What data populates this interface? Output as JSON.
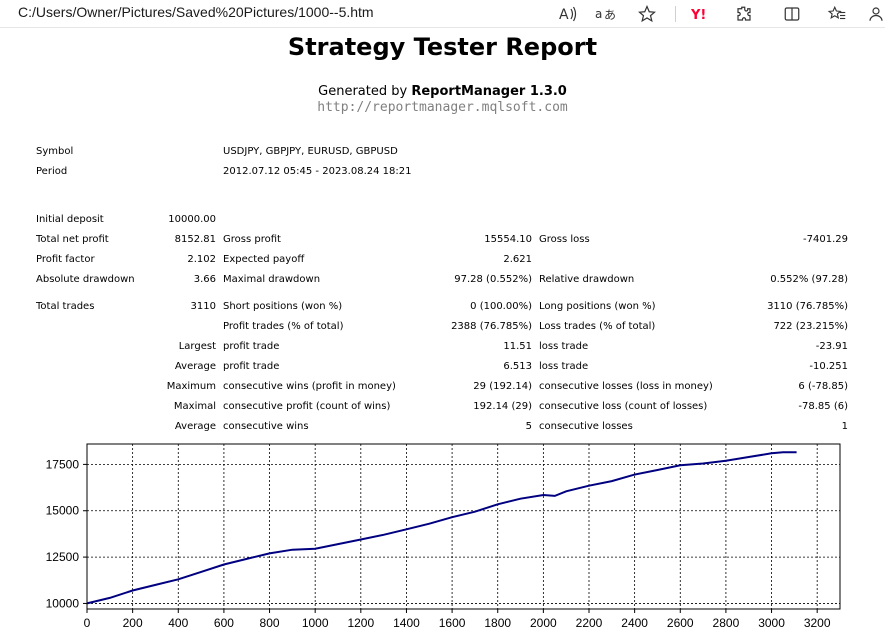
{
  "browser": {
    "url": "C:/Users/Owner/Pictures/Saved%20Pictures/1000--5.htm",
    "icons": [
      "read-aloud-icon",
      "translate-icon",
      "favorite-star-icon",
      "yahoo-icon",
      "extensions-icon",
      "split-screen-icon",
      "favorites-icon",
      "profile-icon"
    ]
  },
  "report": {
    "title": "Strategy Tester Report",
    "generated_prefix": "Generated by",
    "generator": "ReportManager 1.3.0",
    "generator_url": "http://reportmanager.mqlsoft.com",
    "symbol_label": "Symbol",
    "symbol_value": "USDJPY, GBPJPY, EURUSD, GBPUSD",
    "period_label": "Period",
    "period_value": "2012.07.12 05:45 - 2023.08.24 18:21",
    "initial_deposit_label": "Initial deposit",
    "initial_deposit_value": "10000.00",
    "total_net_profit_label": "Total net profit",
    "total_net_profit_value": "8152.81",
    "gross_profit_label": "Gross profit",
    "gross_profit_value": "15554.10",
    "gross_loss_label": "Gross loss",
    "gross_loss_value": "-7401.29",
    "profit_factor_label": "Profit factor",
    "profit_factor_value": "2.102",
    "expected_payoff_label": "Expected payoff",
    "expected_payoff_value": "2.621",
    "absolute_drawdown_label": "Absolute drawdown",
    "absolute_drawdown_value": "3.66",
    "maximal_drawdown_label": "Maximal drawdown",
    "maximal_drawdown_value": "97.28 (0.552%)",
    "relative_drawdown_label": "Relative drawdown",
    "relative_drawdown_value": "0.552% (97.28)",
    "total_trades_label": "Total trades",
    "total_trades_value": "3110",
    "short_positions_label": "Short positions (won %)",
    "short_positions_value": "0 (100.00%)",
    "long_positions_label": "Long positions (won %)",
    "long_positions_value": "3110 (76.785%)",
    "profit_trades_label": "Profit trades (% of total)",
    "profit_trades_value": "2388 (76.785%)",
    "loss_trades_label": "Loss trades (% of total)",
    "loss_trades_value": "722 (23.215%)",
    "largest_label": "Largest",
    "largest_profit_label": "profit trade",
    "largest_profit_value": "11.51",
    "largest_loss_label": "loss trade",
    "largest_loss_value": "-23.91",
    "average_label": "Average",
    "average_profit_label": "profit trade",
    "average_profit_value": "6.513",
    "average_loss_label": "loss trade",
    "average_loss_value": "-10.251",
    "maximum_label": "Maximum",
    "max_cons_wins_label": "consecutive wins (profit in money)",
    "max_cons_wins_value": "29 (192.14)",
    "max_cons_losses_label": "consecutive losses (loss in money)",
    "max_cons_losses_value": "6 (-78.85)",
    "maximal_label": "Maximal",
    "maximal_cons_profit_label": "consecutive profit (count of wins)",
    "maximal_cons_profit_value": "192.14 (29)",
    "maximal_cons_loss_label": "consecutive loss (count of losses)",
    "maximal_cons_loss_value": "-78.85 (6)",
    "average2_label": "Average",
    "avg_cons_wins_label": "consecutive wins",
    "avg_cons_wins_value": "5",
    "avg_cons_losses_label": "consecutive losses",
    "avg_cons_losses_value": "1"
  },
  "chart_data": {
    "type": "line",
    "xlim": [
      0,
      3300
    ],
    "ylim": [
      9700,
      18600
    ],
    "x_ticks": [
      "0",
      "200",
      "400",
      "600",
      "800",
      "1000",
      "1200",
      "1400",
      "1600",
      "1800",
      "2000",
      "2200",
      "2400",
      "2600",
      "2800",
      "3000",
      "3200"
    ],
    "y_ticks": [
      "10000",
      "12500",
      "15000",
      "17500"
    ],
    "grid": true,
    "line_color": "#000080",
    "series": [
      {
        "x": [
          0,
          100,
          200,
          300,
          400,
          500,
          600,
          700,
          800,
          900,
          1000,
          1100,
          1200,
          1300,
          1400,
          1500,
          1600,
          1700,
          1800,
          1900,
          2000,
          2050,
          2100,
          2200,
          2300,
          2400,
          2500,
          2600,
          2700,
          2800,
          2900,
          3000,
          3050,
          3110
        ],
        "y": [
          10000,
          10300,
          10700,
          11000,
          11300,
          11700,
          12100,
          12400,
          12700,
          12900,
          12950,
          13200,
          13450,
          13700,
          14000,
          14300,
          14650,
          14950,
          15350,
          15650,
          15850,
          15800,
          16050,
          16350,
          16600,
          16950,
          17200,
          17450,
          17550,
          17700,
          17900,
          18100,
          18150,
          18150
        ]
      }
    ]
  }
}
